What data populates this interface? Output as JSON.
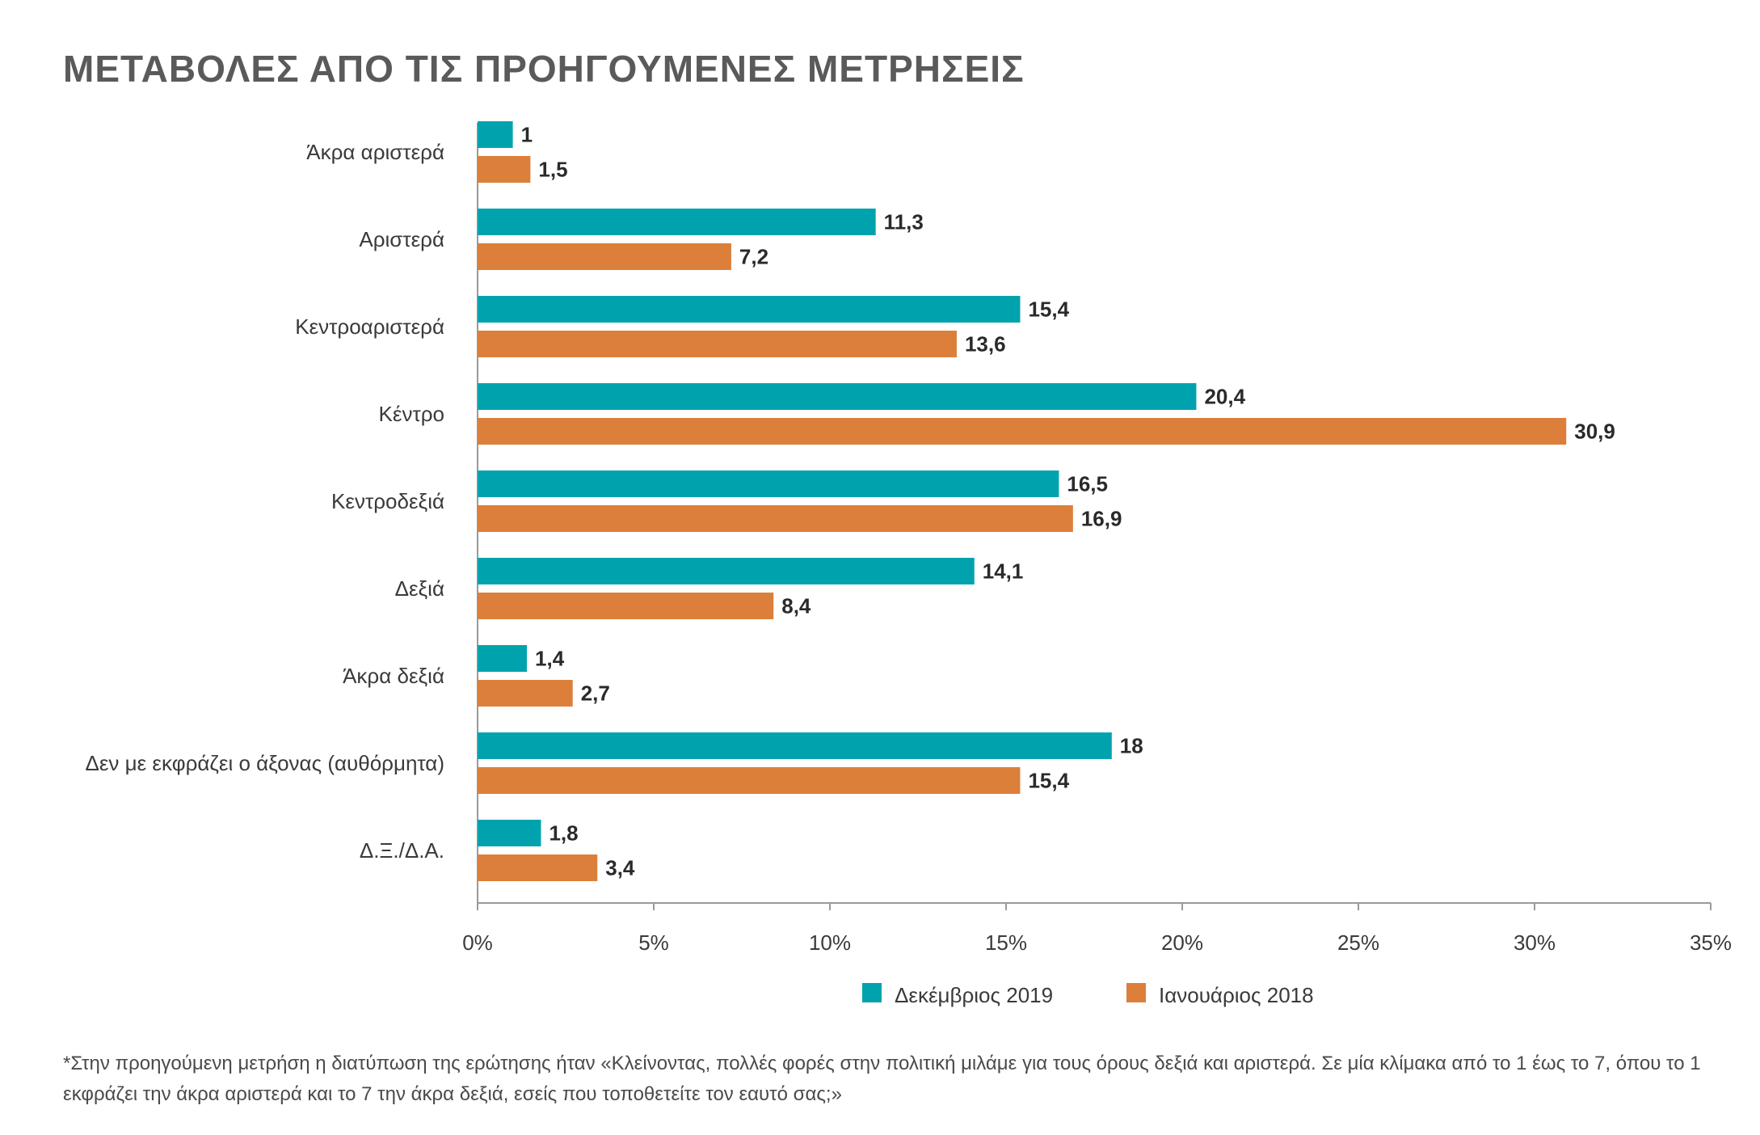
{
  "chart_data": {
    "type": "bar",
    "orientation": "horizontal",
    "title": "ΜΕΤΑΒΟΛΕΣ ΑΠΟ ΤΙΣ ΠΡΟΗΓΟΥΜΕΝΕΣ ΜΕΤΡΗΣΕΙΣ",
    "categories": [
      "Άκρα αριστερά",
      "Αριστερά",
      "Κεντροαριστερά",
      "Κέντρο",
      "Κεντροδεξιά",
      "Δεξιά",
      "Άκρα δεξιά",
      "Δεν με εκφράζει ο άξονας (αυθόρμητα)",
      "Δ.Ξ./Δ.Α."
    ],
    "series": [
      {
        "name": "Δεκέμβριος 2019",
        "color": "#00a3ad",
        "values": [
          1,
          11.3,
          15.4,
          20.4,
          16.5,
          14.1,
          1.4,
          18,
          1.8
        ],
        "labels": [
          "1",
          "11,3",
          "15,4",
          "20,4",
          "16,5",
          "14,1",
          "1,4",
          "18",
          "1,8"
        ]
      },
      {
        "name": "Ιανουάριος 2018",
        "color": "#dc7f3b",
        "values": [
          1.5,
          7.2,
          13.6,
          30.9,
          16.9,
          8.4,
          2.7,
          15.4,
          3.4
        ],
        "labels": [
          "1,5",
          "7,2",
          "13,6",
          "30,9",
          "16,9",
          "8,4",
          "2,7",
          "15,4",
          "3,4"
        ]
      }
    ],
    "xlim": [
      0,
      35
    ],
    "xticks": [
      "0%",
      "5%",
      "10%",
      "15%",
      "20%",
      "25%",
      "30%",
      "35%"
    ],
    "legend": "bottom",
    "grid": false
  },
  "footnote": "*Στην προηγούμενη μετρήση η διατύπωση της ερώτησης ήταν «Κλείνοντας, πολλές φορές στην πολιτική μιλάμε για τους όρους δεξιά και αριστερά. Σε μία κλίμακα από το 1 έως το 7, όπου το 1 εκφράζει την άκρα αριστερά και το 7 την άκρα δεξιά, εσείς που τοποθετείτε τον εαυτό σας;»"
}
